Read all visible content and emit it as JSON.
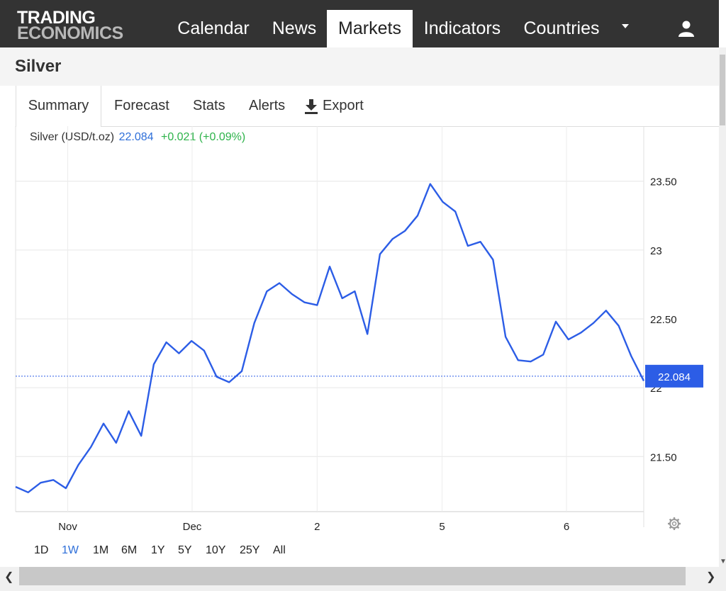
{
  "brand": {
    "line1": "TRADING",
    "line2": "ECONOMICS"
  },
  "nav": {
    "items": [
      {
        "label": "Calendar",
        "active": false
      },
      {
        "label": "News",
        "active": false
      },
      {
        "label": "Markets",
        "active": true
      },
      {
        "label": "Indicators",
        "active": false
      },
      {
        "label": "Countries",
        "active": false
      }
    ],
    "more_icon": "chevron-down-icon",
    "user_icon": "user-icon"
  },
  "page": {
    "title": "Silver"
  },
  "tabs": [
    {
      "label": "Summary",
      "active": true
    },
    {
      "label": "Forecast",
      "active": false
    },
    {
      "label": "Stats",
      "active": false
    },
    {
      "label": "Alerts",
      "active": false
    },
    {
      "label": "Export",
      "active": false,
      "icon": "download-icon"
    }
  ],
  "quote": {
    "name": "Silver (USD/t.oz)",
    "price": "22.084",
    "change": "+0.021 (+0.09%)",
    "colors": {
      "price": "#2e6fd9",
      "change": "#2db34a"
    }
  },
  "chart_data": {
    "type": "line",
    "series": [
      {
        "color": "#2c5de6",
        "x": [
          0,
          2,
          4,
          6,
          8,
          10,
          12,
          14,
          16,
          18,
          20,
          22,
          24,
          26,
          28,
          30,
          32,
          34,
          36,
          38,
          40,
          42,
          44,
          46,
          48,
          50,
          52,
          54,
          56,
          58,
          60,
          62,
          64,
          66,
          68,
          70,
          72,
          74,
          76,
          78,
          80,
          82,
          84,
          86,
          88,
          90,
          92,
          94,
          96,
          98,
          100
        ],
        "y": [
          21.28,
          21.24,
          21.31,
          21.33,
          21.27,
          21.44,
          21.57,
          21.74,
          21.6,
          21.83,
          21.65,
          22.17,
          22.33,
          22.25,
          22.34,
          22.27,
          22.08,
          22.04,
          22.12,
          22.47,
          22.7,
          22.76,
          22.68,
          22.62,
          22.6,
          22.88,
          22.65,
          22.7,
          22.39,
          22.97,
          23.08,
          23.14,
          23.25,
          23.48,
          23.35,
          23.28,
          23.03,
          23.06,
          22.93,
          22.37,
          22.2,
          22.19,
          22.24,
          22.48,
          22.35,
          22.4,
          22.47,
          22.56,
          22.45,
          22.23,
          22.05
        ]
      }
    ],
    "last_value": "22.084",
    "ylim": [
      21.1,
      23.9
    ],
    "yticks": [
      {
        "label": "23.50",
        "value": 23.5
      },
      {
        "label": "23",
        "value": 23.0
      },
      {
        "label": "22.50",
        "value": 22.5
      },
      {
        "label": "22",
        "value": 22.0
      },
      {
        "label": "21.50",
        "value": 21.5
      }
    ],
    "xticks": [
      {
        "label": "Nov",
        "pos": 8.3
      },
      {
        "label": "Dec",
        "pos": 28.1
      },
      {
        "label": "2",
        "pos": 48.0
      },
      {
        "label": "5",
        "pos": 67.9
      },
      {
        "label": "6",
        "pos": 87.7
      }
    ],
    "grid": true
  },
  "ranges": [
    {
      "label": "1D",
      "active": false
    },
    {
      "label": "1W",
      "active": true
    },
    {
      "label": "1M",
      "active": false
    },
    {
      "label": "6M",
      "active": false
    },
    {
      "label": "1Y",
      "active": false
    },
    {
      "label": "5Y",
      "active": false
    },
    {
      "label": "10Y",
      "active": false
    },
    {
      "label": "25Y",
      "active": false
    },
    {
      "label": "All",
      "active": false
    }
  ]
}
